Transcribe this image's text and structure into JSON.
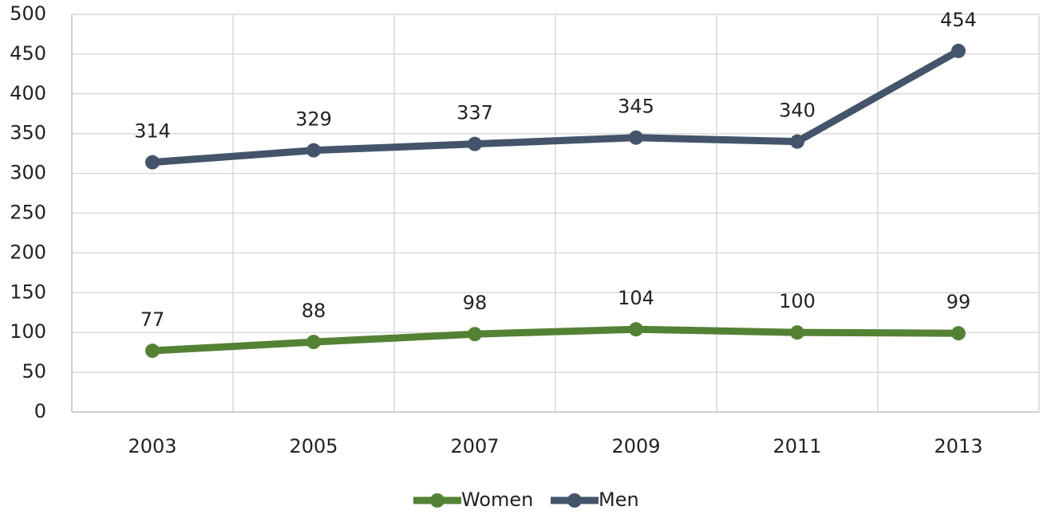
{
  "chart_data": {
    "type": "line",
    "categories": [
      "2003",
      "2005",
      "2007",
      "2009",
      "2011",
      "2013"
    ],
    "series": [
      {
        "name": "Women",
        "color": "#548235",
        "values": [
          77,
          88,
          98,
          104,
          100,
          99
        ]
      },
      {
        "name": "Men",
        "color": "#44546a",
        "values": [
          314,
          329,
          337,
          345,
          340,
          454
        ]
      }
    ],
    "ylim": [
      0,
      500
    ],
    "yticks": [
      0,
      50,
      100,
      150,
      200,
      250,
      300,
      350,
      400,
      450,
      500
    ],
    "grid": true,
    "legend": "bottom"
  }
}
